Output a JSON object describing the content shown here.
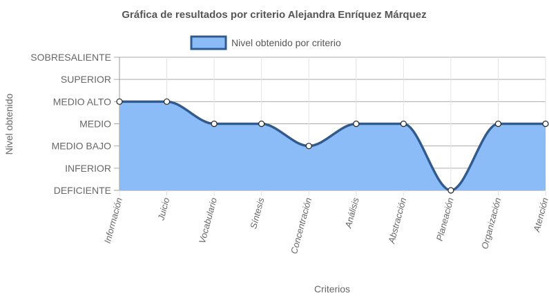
{
  "chart_data": {
    "type": "area",
    "title": "Gráfica de resultados por criterio Alejandra Enríquez Márquez",
    "xlabel": "Criterios",
    "ylabel": "Nivel obtenido",
    "levels": [
      "DEFICIENTE",
      "INFERIOR",
      "MEDIO BAJO",
      "MEDIO",
      "MEDIO ALTO",
      "SUPERIOR",
      "SOBRESALIENTE"
    ],
    "categories": [
      "Información",
      "Juicio",
      "Vocabulario",
      "Síntesis",
      "Concentración",
      "Análisis",
      "Abstracción",
      "Planeación",
      "Organización",
      "Atención"
    ],
    "series": [
      {
        "name": "Nivel obtenido por criterio",
        "values": [
          "MEDIO ALTO",
          "MEDIO ALTO",
          "MEDIO",
          "MEDIO",
          "MEDIO BAJO",
          "MEDIO",
          "MEDIO",
          "DEFICIENTE",
          "MEDIO",
          "MEDIO"
        ],
        "fill_color": "#8bbcf7",
        "line_color": "#2f5b91"
      }
    ],
    "grid": true,
    "legend_position": "top"
  }
}
